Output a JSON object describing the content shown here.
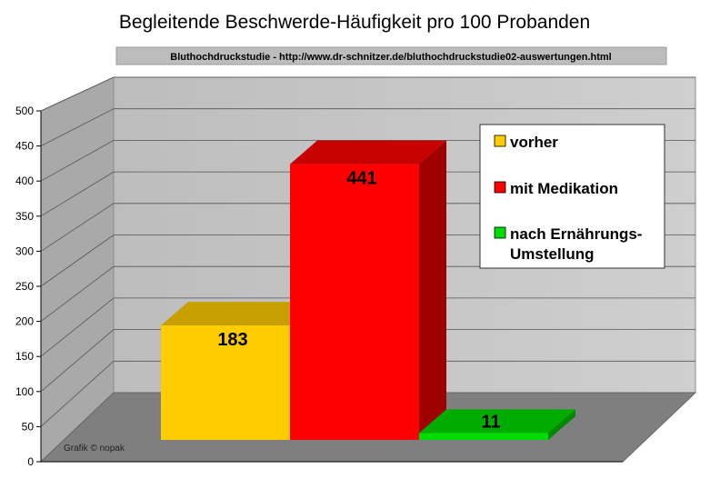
{
  "chart_data": {
    "type": "bar",
    "title": "Begleitende Beschwerde-Häufigkeit pro 100 Probanden",
    "subtitle": "Bluthochdruckstudie - http://www.dr-schnitzer.de/bluthochdruckstudie02-auswertungen.html",
    "categories": [
      "vorher",
      "mit Medikation",
      "nach Ernährungs-Umstellung"
    ],
    "values": [
      183,
      441,
      11
    ],
    "colors": [
      "#FFCC00",
      "#FF0000",
      "#00DD00"
    ],
    "ylim": [
      0,
      500
    ],
    "yticks": [
      "0",
      "50",
      "100",
      "150",
      "200",
      "250",
      "300",
      "350",
      "400",
      "450",
      "500"
    ],
    "grid": true,
    "three_d": true,
    "legend": {
      "placement": "right",
      "entries": [
        {
          "lines": [
            "vorher"
          ]
        },
        {
          "lines": [
            "mit Medikation"
          ]
        },
        {
          "lines": [
            "nach Ernährungs-",
            "Umstellung"
          ]
        }
      ]
    },
    "credit": "Grafik © nopak"
  }
}
